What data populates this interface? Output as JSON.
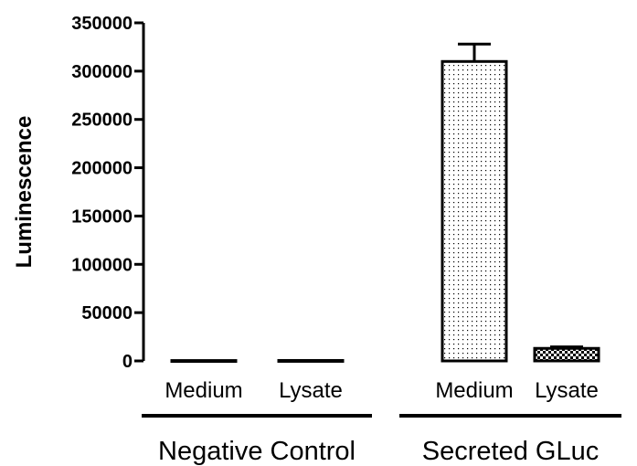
{
  "chart_data": {
    "type": "bar",
    "title": "",
    "ylabel": "Luminescence",
    "xlabel": "",
    "ylim": [
      0,
      350000
    ],
    "yticks": [
      0,
      50000,
      100000,
      150000,
      200000,
      250000,
      300000,
      350000
    ],
    "grid": false,
    "categories": [
      "Medium",
      "Lysate",
      "Medium",
      "Lysate"
    ],
    "groups": [
      {
        "label": "Negative Control",
        "categories": [
          "Medium",
          "Lysate"
        ]
      },
      {
        "label": "Secreted GLuc",
        "categories": [
          "Medium",
          "Lysate"
        ]
      }
    ],
    "values": [
      400,
      500,
      310000,
      13000
    ],
    "errors": [
      0,
      0,
      18000,
      1500
    ],
    "fills": [
      "none",
      "none",
      "dots",
      "checker"
    ]
  }
}
